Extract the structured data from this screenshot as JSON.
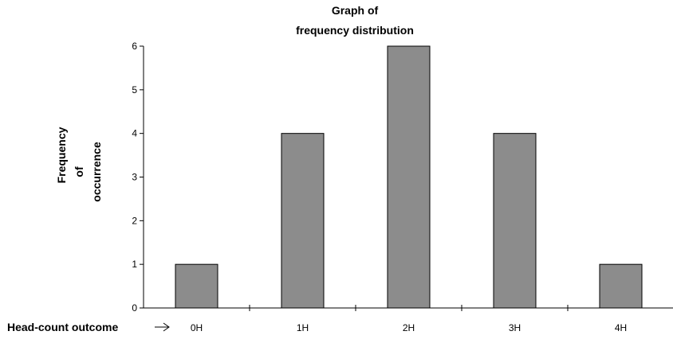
{
  "chart_data": {
    "type": "bar",
    "title_lines": [
      "Graph of",
      "frequency distribution"
    ],
    "ylabel_lines": [
      "Frequency",
      "of",
      "occurrence"
    ],
    "xlabel": "Head-count outcome",
    "categories": [
      "0H",
      "1H",
      "2H",
      "3H",
      "4H"
    ],
    "values": [
      1,
      4,
      6,
      4,
      1
    ],
    "ylim": [
      0,
      6
    ],
    "yticks": [
      0,
      1,
      2,
      3,
      4,
      5,
      6
    ],
    "grid": false,
    "legend": "none",
    "bar_color": "#8c8c8c",
    "bar_border_color": "#000000"
  }
}
